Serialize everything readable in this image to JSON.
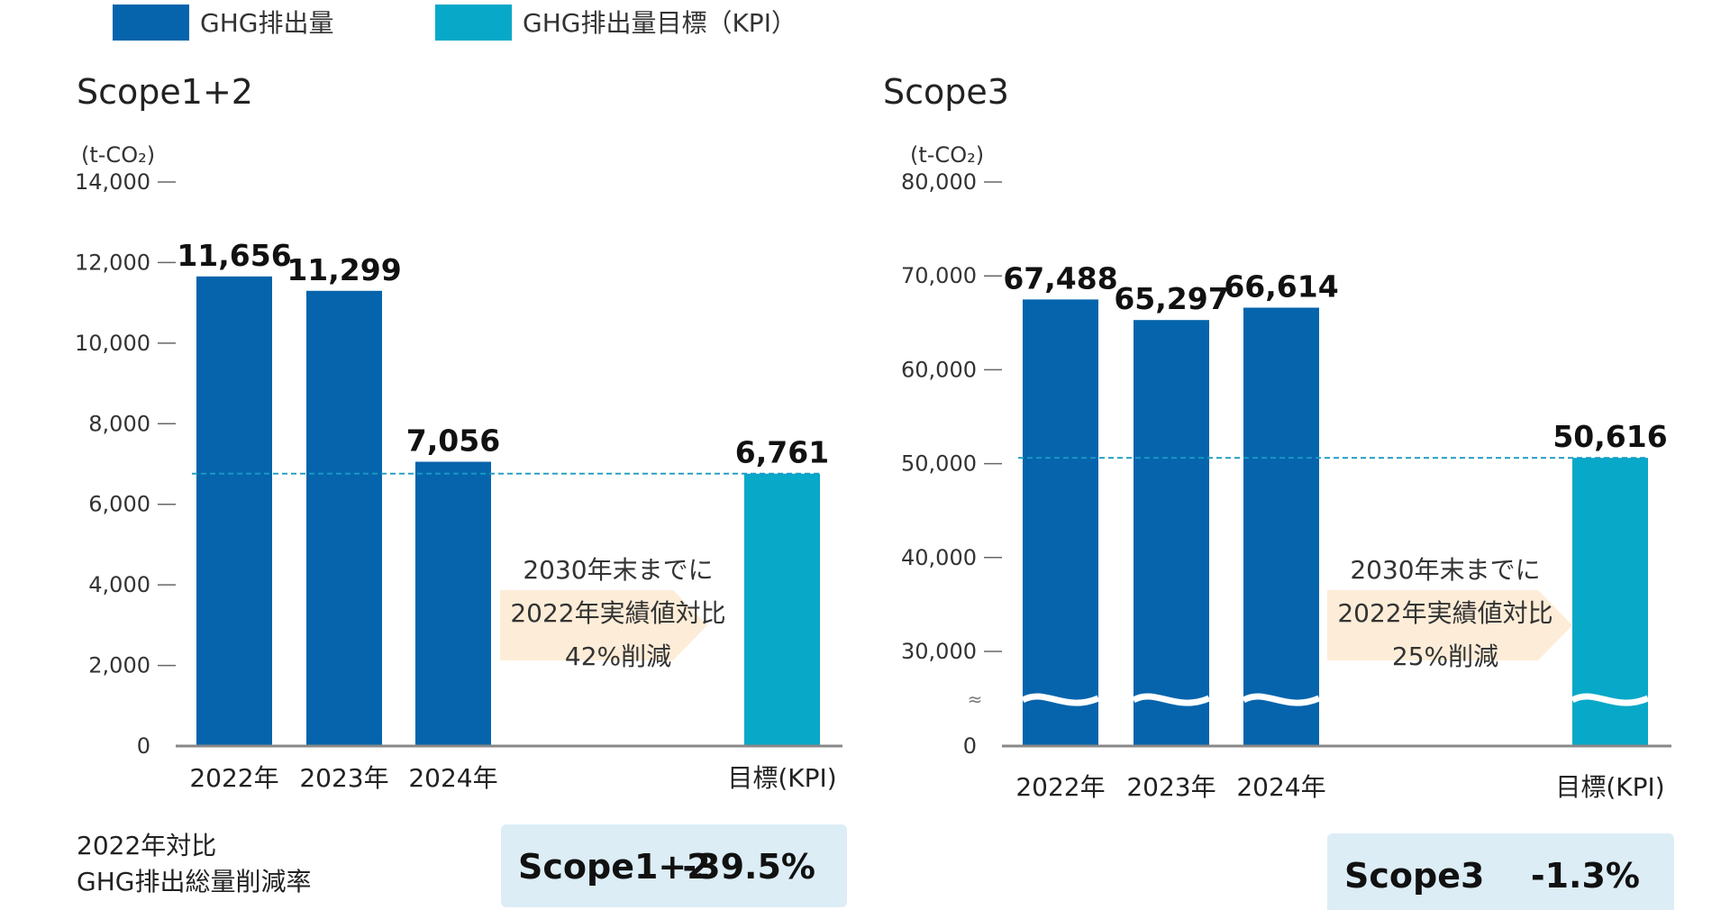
{
  "colors": {
    "actual": "#0564ac",
    "target": "#07a8c8",
    "arrow": "#fdedd8",
    "badge": "#dcedf6",
    "dash": "#1a9ac3",
    "axis": "#888888"
  },
  "legend": [
    {
      "label": "GHG排出量",
      "color_key": "actual"
    },
    {
      "label": "GHG排出量目標（KPI）",
      "color_key": "target"
    }
  ],
  "caption": {
    "line1": "2022年対比",
    "line2": "GHG排出総量削減率"
  },
  "chart_data": [
    {
      "type": "bar",
      "title": "Scope1+2",
      "unit": "(t-CO₂)",
      "categories": [
        "2022年",
        "2023年",
        "2024年",
        "目標(KPI)"
      ],
      "values": [
        11656,
        11299,
        7056,
        6761
      ],
      "value_labels": [
        "11,656",
        "11,299",
        "7,056",
        "6,761"
      ],
      "kinds": [
        "actual",
        "actual",
        "actual",
        "target"
      ],
      "ylim": [
        0,
        14000
      ],
      "ticks": [
        0,
        2000,
        4000,
        6000,
        8000,
        10000,
        12000,
        14000
      ],
      "tick_labels": [
        "0",
        "2,000",
        "4,000",
        "6,000",
        "8,000",
        "10,000",
        "12,000",
        "14,000"
      ],
      "target_line": 6761,
      "note": [
        "2030年末までに",
        "2022年実績値対比",
        "42%削減"
      ],
      "badge": {
        "label": "Scope1+2",
        "value": "-39.5%"
      },
      "axis_break": false
    },
    {
      "type": "bar",
      "title": "Scope3",
      "unit": "(t-CO₂)",
      "categories": [
        "2022年",
        "2023年",
        "2024年",
        "目標(KPI)"
      ],
      "values": [
        67488,
        65297,
        66614,
        50616
      ],
      "value_labels": [
        "67,488",
        "65,297",
        "66,614",
        "50,616"
      ],
      "kinds": [
        "actual",
        "actual",
        "actual",
        "target"
      ],
      "ylim": [
        20000,
        80000
      ],
      "ticks": [
        0,
        30000,
        40000,
        50000,
        60000,
        70000,
        80000
      ],
      "tick_labels": [
        "0",
        "30,000",
        "40,000",
        "50,000",
        "60,000",
        "70,000",
        "80,000"
      ],
      "target_line": 50616,
      "note": [
        "2030年末までに",
        "2022年実績値対比",
        "25%削減"
      ],
      "badge": {
        "label": "Scope3",
        "value": "-1.3%"
      },
      "axis_break": true
    }
  ]
}
